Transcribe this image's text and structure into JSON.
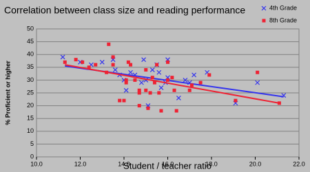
{
  "chart_data": {
    "type": "scatter",
    "title": "Correlation between class size and reading performance",
    "x_label": "Student / teacher ratio",
    "y_label": "% Proficient or higher",
    "xlim": [
      10,
      22
    ],
    "xticks": [
      {
        "value": 10,
        "label": "10.0"
      },
      {
        "value": 12,
        "label": "12.0"
      },
      {
        "value": 14,
        "label": "14.0"
      },
      {
        "value": 16,
        "label": "16.0"
      },
      {
        "value": 18,
        "label": "18.0"
      },
      {
        "value": 20,
        "label": "20.0"
      },
      {
        "value": 22,
        "label": "22.0"
      }
    ],
    "ylim": [
      0,
      50
    ],
    "yticks": [
      0,
      5,
      10,
      15,
      20,
      25,
      30,
      35,
      40,
      45,
      50
    ],
    "grid": true,
    "legend": "top-right",
    "series": [
      {
        "name": "4th Grade",
        "color": "#3333ee",
        "marker": "x",
        "x": [
          11.2,
          12.0,
          12.5,
          13.0,
          13.5,
          13.6,
          14.0,
          14.1,
          14.3,
          14.5,
          14.9,
          15.0,
          15.1,
          15.3,
          15.5,
          15.6,
          15.7,
          16.0,
          16.0,
          16.5,
          16.8,
          17.2,
          17.8,
          19.1,
          20.1,
          21.3,
          13.8,
          14.8,
          15.9,
          17.0
        ],
        "values": [
          39,
          37,
          36,
          37,
          38,
          34,
          30,
          26,
          33,
          32,
          38,
          30,
          20,
          34,
          36,
          33,
          27,
          38,
          31,
          23,
          30,
          32,
          33,
          21,
          29,
          24,
          32,
          29,
          29,
          29
        ],
        "trend": {
          "x": [
            11.3,
            21.3
          ],
          "values": [
            35.5,
            23.5
          ]
        }
      },
      {
        "name": "8th Grade",
        "color": "#ee2233",
        "marker": "square",
        "x": [
          11.3,
          11.8,
          12.1,
          12.4,
          12.7,
          13.2,
          13.3,
          13.5,
          13.5,
          13.8,
          14.0,
          14.1,
          14.2,
          14.3,
          14.5,
          14.7,
          14.7,
          14.7,
          15.0,
          15.0,
          15.1,
          15.2,
          15.3,
          15.5,
          15.6,
          15.7,
          16.0,
          16.0,
          16.2,
          16.4,
          17.0,
          17.1,
          17.5,
          17.9,
          19.1,
          20.1,
          21.1,
          14.1,
          15.4,
          16.3
        ],
        "values": [
          37,
          38,
          37,
          35,
          36,
          33,
          44,
          36,
          39,
          22,
          22,
          29,
          37,
          36,
          30,
          26,
          25,
          20,
          34,
          26,
          19,
          25,
          31,
          36,
          25,
          18,
          30,
          37,
          31,
          18,
          26,
          28,
          29,
          32,
          22,
          33,
          21,
          30,
          29,
          26
        ],
        "trend": {
          "x": [
            11.3,
            21.1
          ],
          "values": [
            36,
            21
          ]
        }
      }
    ]
  }
}
